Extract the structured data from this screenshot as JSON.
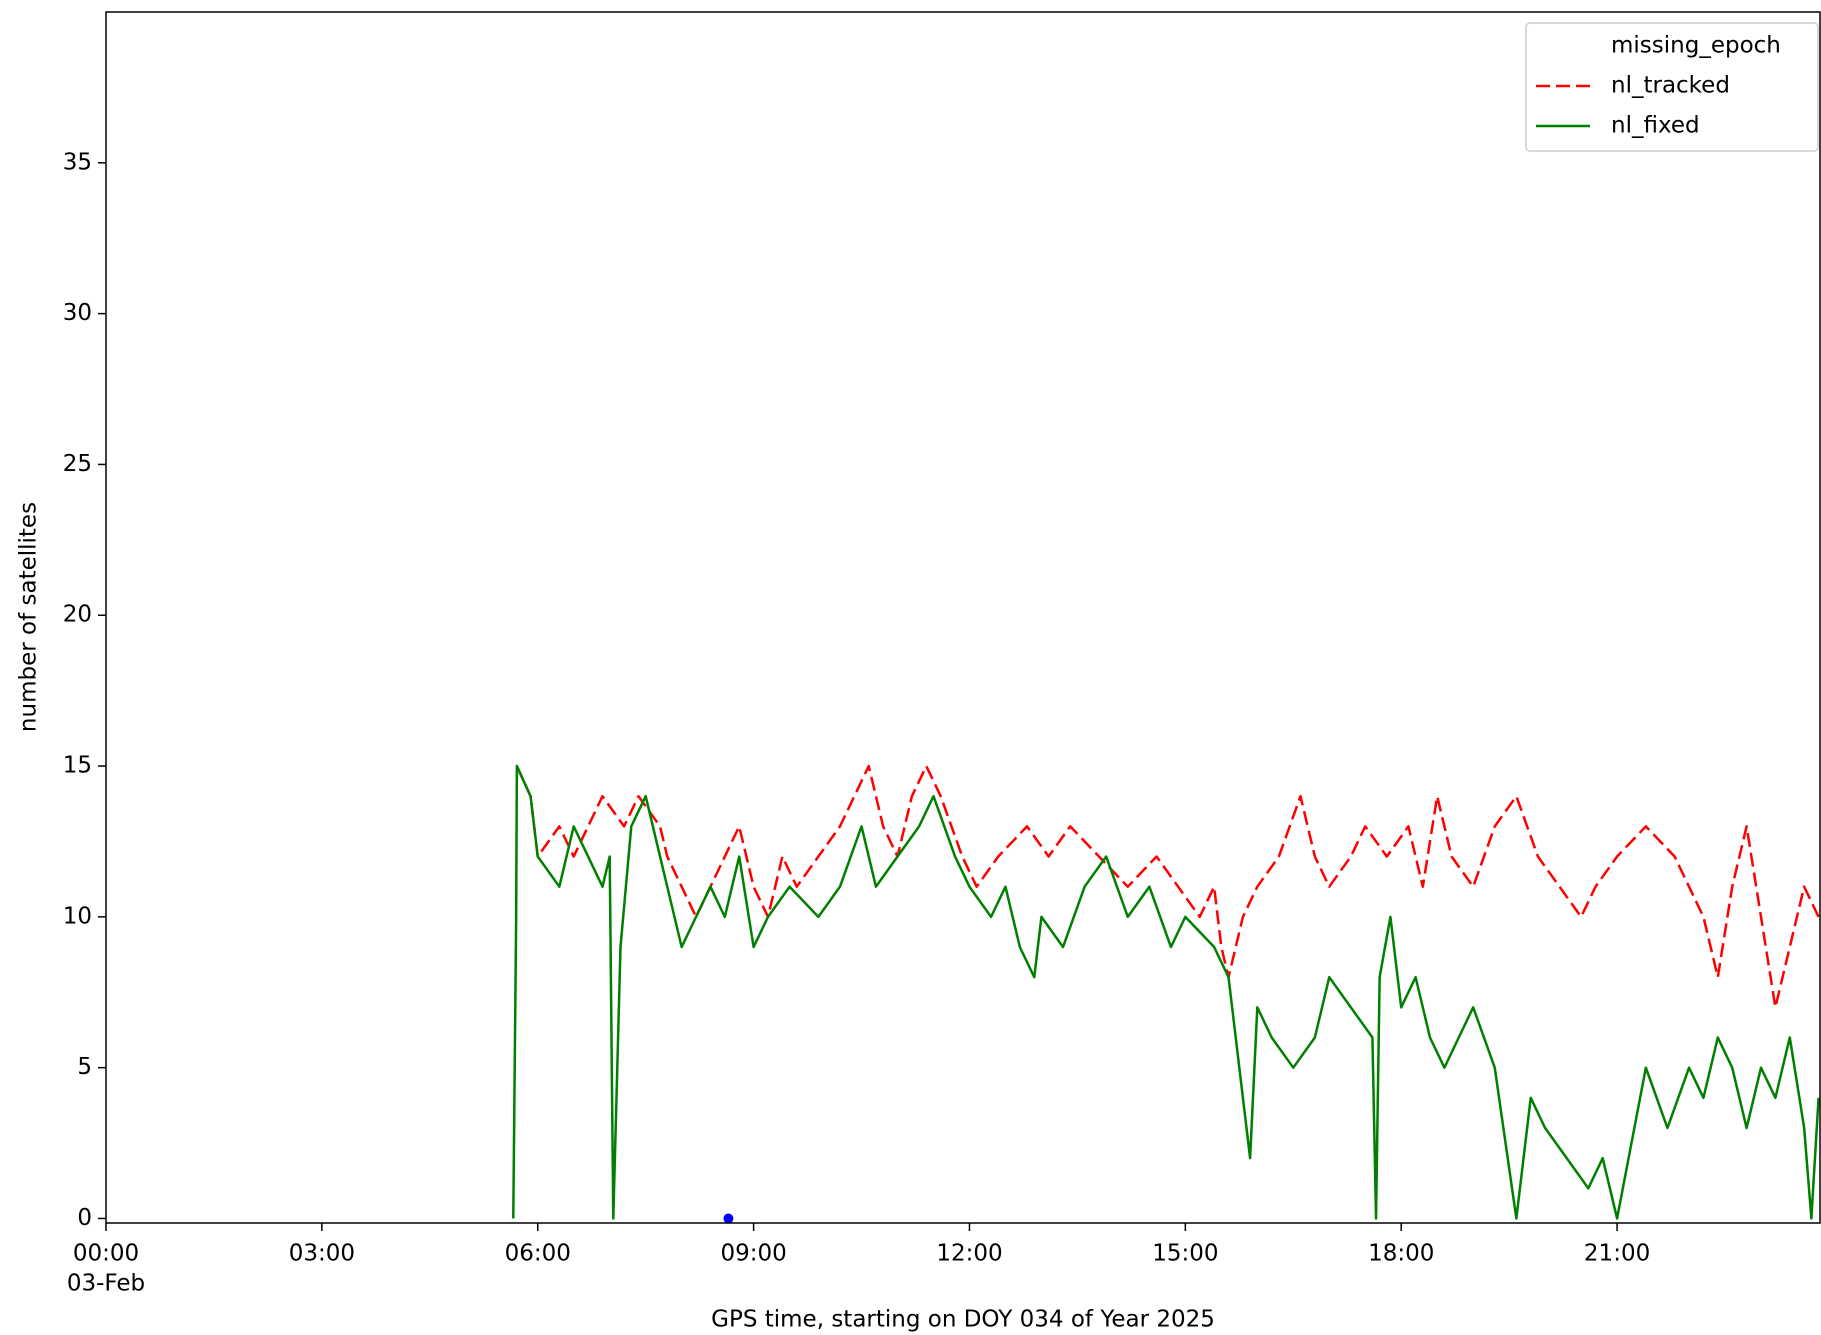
{
  "chart_data": {
    "type": "line",
    "xlabel": "GPS time, starting on DOY 034 of Year 2025",
    "ylabel": "number of satellites",
    "x_date": "03-Feb",
    "xlim": [
      0,
      23.82
    ],
    "ylim": [
      -0.15,
      40
    ],
    "xticks": [
      {
        "value": 0,
        "label": "00:00"
      },
      {
        "value": 3,
        "label": "03:00"
      },
      {
        "value": 6,
        "label": "06:00"
      },
      {
        "value": 9,
        "label": "09:00"
      },
      {
        "value": 12,
        "label": "12:00"
      },
      {
        "value": 15,
        "label": "15:00"
      },
      {
        "value": 18,
        "label": "18:00"
      },
      {
        "value": 21,
        "label": "21:00"
      }
    ],
    "yticks": [
      0,
      5,
      10,
      15,
      20,
      25,
      30,
      35
    ],
    "legend": "upper right",
    "series": [
      {
        "name": "missing_epoch",
        "color": "#0000ff",
        "style": "marker",
        "x": [
          8.65
        ],
        "values": [
          0
        ]
      },
      {
        "name": "nl_tracked",
        "color": "#ff0000",
        "style": "dashed",
        "x": [
          5.71,
          5.9,
          6.0,
          6.3,
          6.5,
          6.7,
          6.9,
          7.2,
          7.4,
          7.7,
          7.8,
          8.0,
          8.2,
          8.4,
          8.6,
          8.8,
          9.0,
          9.2,
          9.4,
          9.6,
          9.9,
          10.2,
          10.4,
          10.6,
          10.8,
          11.0,
          11.2,
          11.4,
          11.6,
          11.9,
          12.1,
          12.4,
          12.8,
          13.1,
          13.4,
          13.8,
          14.2,
          14.6,
          14.9,
          15.2,
          15.4,
          15.5,
          15.6,
          15.8,
          16.0,
          16.3,
          16.6,
          16.8,
          17.0,
          17.3,
          17.5,
          17.8,
          18.1,
          18.3,
          18.5,
          18.7,
          19.0,
          19.3,
          19.6,
          19.9,
          20.2,
          20.5,
          20.7,
          21.0,
          21.4,
          21.8,
          22.0,
          22.2,
          22.4,
          22.6,
          22.8,
          23.0,
          23.2,
          23.4,
          23.6,
          23.8
        ],
        "values": [
          15,
          14,
          12,
          13,
          12,
          13,
          14,
          13,
          14,
          13,
          12,
          11,
          10,
          11,
          12,
          13,
          11,
          10,
          12,
          11,
          12,
          13,
          14,
          15,
          13,
          12,
          14,
          15,
          14,
          12,
          11,
          12,
          13,
          12,
          13,
          12,
          11,
          12,
          11,
          10,
          11,
          9,
          8,
          10,
          11,
          12,
          14,
          12,
          11,
          12,
          13,
          12,
          13,
          11,
          14,
          12,
          11,
          13,
          14,
          12,
          11,
          10,
          11,
          12,
          13,
          12,
          11,
          10,
          8,
          11,
          13,
          10,
          7,
          9,
          11,
          10
        ]
      },
      {
        "name": "nl_fixed",
        "color": "#008000",
        "style": "solid",
        "x": [
          5.66,
          5.7,
          5.71,
          5.9,
          6.0,
          6.3,
          6.5,
          6.7,
          6.9,
          7.0,
          7.05,
          7.15,
          7.3,
          7.5,
          7.7,
          7.9,
          8.0,
          8.4,
          8.6,
          8.8,
          9.0,
          9.2,
          9.5,
          9.9,
          10.2,
          10.5,
          10.7,
          11.0,
          11.3,
          11.5,
          11.8,
          12.0,
          12.3,
          12.5,
          12.7,
          12.9,
          13.0,
          13.3,
          13.6,
          13.9,
          14.2,
          14.5,
          14.8,
          15.0,
          15.4,
          15.6,
          15.9,
          16.0,
          16.2,
          16.5,
          16.8,
          17.0,
          17.3,
          17.6,
          17.65,
          17.7,
          17.85,
          18.0,
          18.2,
          18.4,
          18.6,
          18.8,
          19.0,
          19.3,
          19.6,
          19.8,
          20.0,
          20.3,
          20.6,
          20.8,
          21.0,
          21.4,
          21.7,
          22.0,
          22.2,
          22.4,
          22.6,
          22.8,
          23.0,
          23.2,
          23.4,
          23.6,
          23.7,
          23.8
        ],
        "values": [
          0,
          10,
          15,
          14,
          12,
          11,
          13,
          12,
          11,
          12,
          0,
          9,
          13,
          14,
          12,
          10,
          9,
          11,
          10,
          12,
          9,
          10,
          11,
          10,
          11,
          13,
          11,
          12,
          13,
          14,
          12,
          11,
          10,
          11,
          9,
          8,
          10,
          9,
          11,
          12,
          10,
          11,
          9,
          10,
          9,
          8,
          2,
          7,
          6,
          5,
          6,
          8,
          7,
          6,
          0,
          8,
          10,
          7,
          8,
          6,
          5,
          6,
          7,
          5,
          0,
          4,
          3,
          2,
          1,
          2,
          0,
          5,
          3,
          5,
          4,
          6,
          5,
          3,
          5,
          4,
          6,
          3,
          0,
          4
        ]
      }
    ]
  }
}
